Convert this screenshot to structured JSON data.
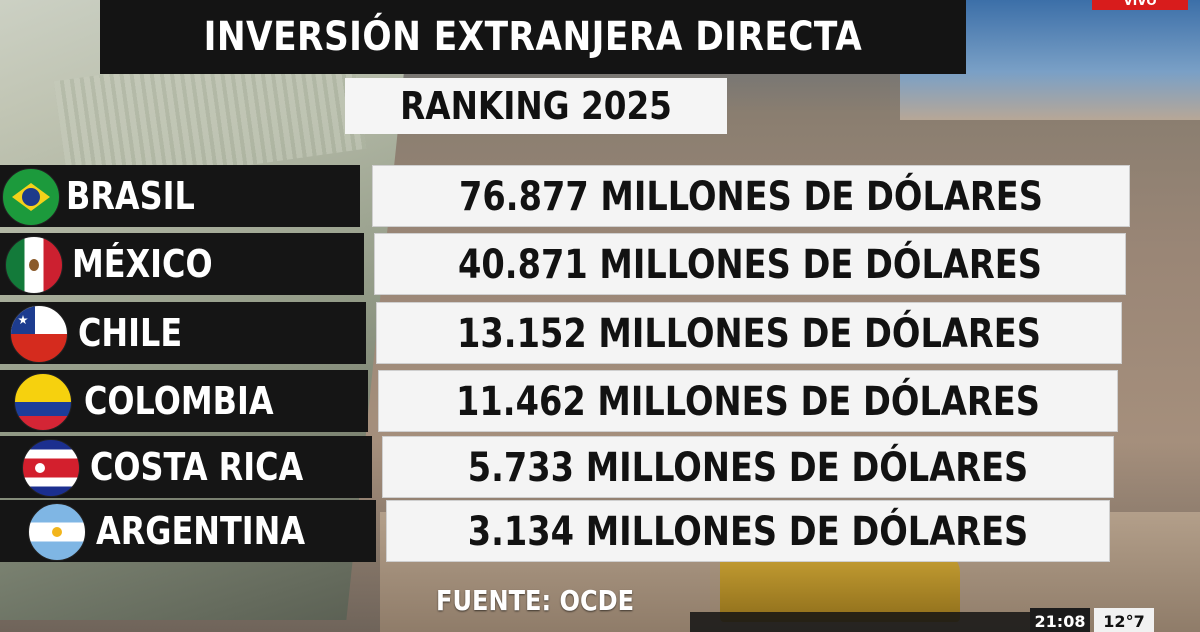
{
  "live_badge": "VIVO",
  "title": "INVERSIÓN EXTRANJERA DIRECTA",
  "subtitle": "RANKING 2025",
  "rows": [
    {
      "country": "BRASIL",
      "flag": "brazil-flag-icon",
      "value": "76.877 MILLONES DE DÓLARES"
    },
    {
      "country": "MÉXICO",
      "flag": "mexico-flag-icon",
      "value": "40.871 MILLONES DE DÓLARES"
    },
    {
      "country": "CHILE",
      "flag": "chile-flag-icon",
      "value": "13.152 MILLONES DE DÓLARES"
    },
    {
      "country": "COLOMBIA",
      "flag": "colombia-flag-icon",
      "value": "11.462 MILLONES DE DÓLARES"
    },
    {
      "country": "COSTA RICA",
      "flag": "costa-rica-flag-icon",
      "value": "5.733 MILLONES DE DÓLARES"
    },
    {
      "country": "ARGENTINA",
      "flag": "argentina-flag-icon",
      "value": "3.134 MILLONES DE DÓLARES"
    }
  ],
  "source": "FUENTE: OCDE",
  "clock": "21:08",
  "temperature": "12°7"
}
